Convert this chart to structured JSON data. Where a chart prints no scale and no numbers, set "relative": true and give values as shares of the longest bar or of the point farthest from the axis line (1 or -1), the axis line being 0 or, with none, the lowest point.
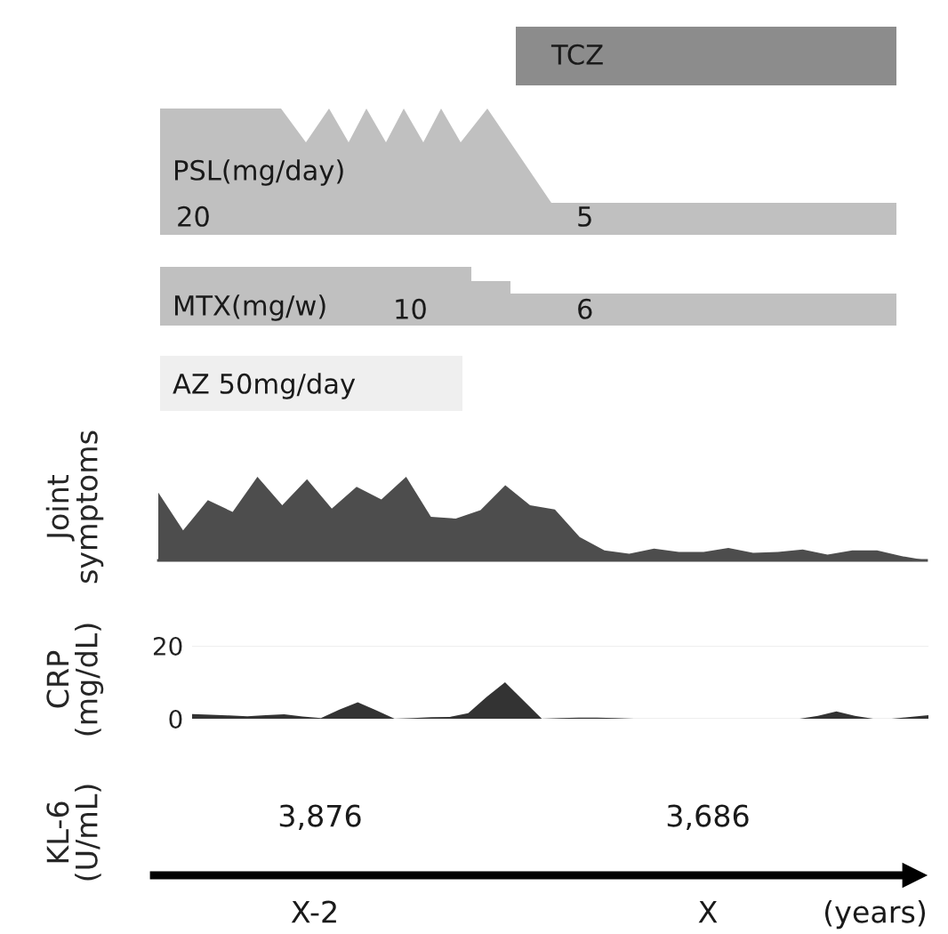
{
  "chart_data": [
    {
      "type": "other",
      "annotations": [
        "TCZ",
        "PSL(mg/day)",
        "20",
        "5",
        "MTX(mg/w)",
        "10",
        "6",
        "AZ 50mg/day"
      ]
    },
    {
      "type": "area",
      "ylabel": "Joint\nsymptoms",
      "relative": true,
      "color": "#4d4d4d",
      "categories": [
        null,
        null,
        null,
        null,
        null,
        null,
        null,
        null,
        null,
        null,
        null,
        null,
        null,
        null,
        null,
        null,
        null,
        null,
        null,
        null,
        null,
        null,
        null,
        null,
        null,
        null,
        null,
        null,
        null,
        null,
        null,
        null
      ],
      "values": [
        0.81,
        0.36,
        0.72,
        0.58,
        1.0,
        0.66,
        0.97,
        0.62,
        0.88,
        0.73,
        1.0,
        0.52,
        0.5,
        0.6,
        0.9,
        0.66,
        0.61,
        0.28,
        0.12,
        0.08,
        0.14,
        0.1,
        0.1,
        0.15,
        0.09,
        0.1,
        0.13,
        0.07,
        0.12,
        0.12,
        0.05,
        0
      ]
    },
    {
      "type": "area",
      "ylabel": "CRP\n(mg/dL)",
      "color": "#333333",
      "ylim": [
        0,
        20
      ],
      "yticks": [
        0,
        20
      ],
      "grid": "y",
      "tick_labels": "y",
      "categories": [
        null,
        null,
        null,
        null,
        null,
        null,
        null,
        null,
        null,
        null,
        null,
        null,
        null,
        null,
        null,
        null,
        null,
        null,
        null,
        null,
        null,
        null,
        null,
        null,
        null,
        null,
        null,
        null,
        null,
        null,
        null,
        null,
        null,
        null,
        null,
        null,
        null,
        null,
        null,
        null,
        null
      ],
      "values": [
        1.3,
        1.1,
        0.9,
        0.7,
        1.0,
        1.2,
        0.6,
        0.2,
        2.5,
        4.5,
        2.3,
        0,
        0.2,
        0.4,
        0.5,
        1.5,
        6,
        10,
        5,
        0,
        0.2,
        0.3,
        0.3,
        0.2,
        0,
        0,
        0,
        0,
        0,
        0,
        0,
        0,
        0,
        0,
        0.8,
        2,
        0.8,
        0,
        0,
        0.5,
        1
      ]
    },
    {
      "type": "other",
      "ylabel": "KL-6\n(U/mL)",
      "annotations": [
        "3,876",
        "3,686",
        "X-2",
        "X",
        "(years)"
      ]
    }
  ]
}
